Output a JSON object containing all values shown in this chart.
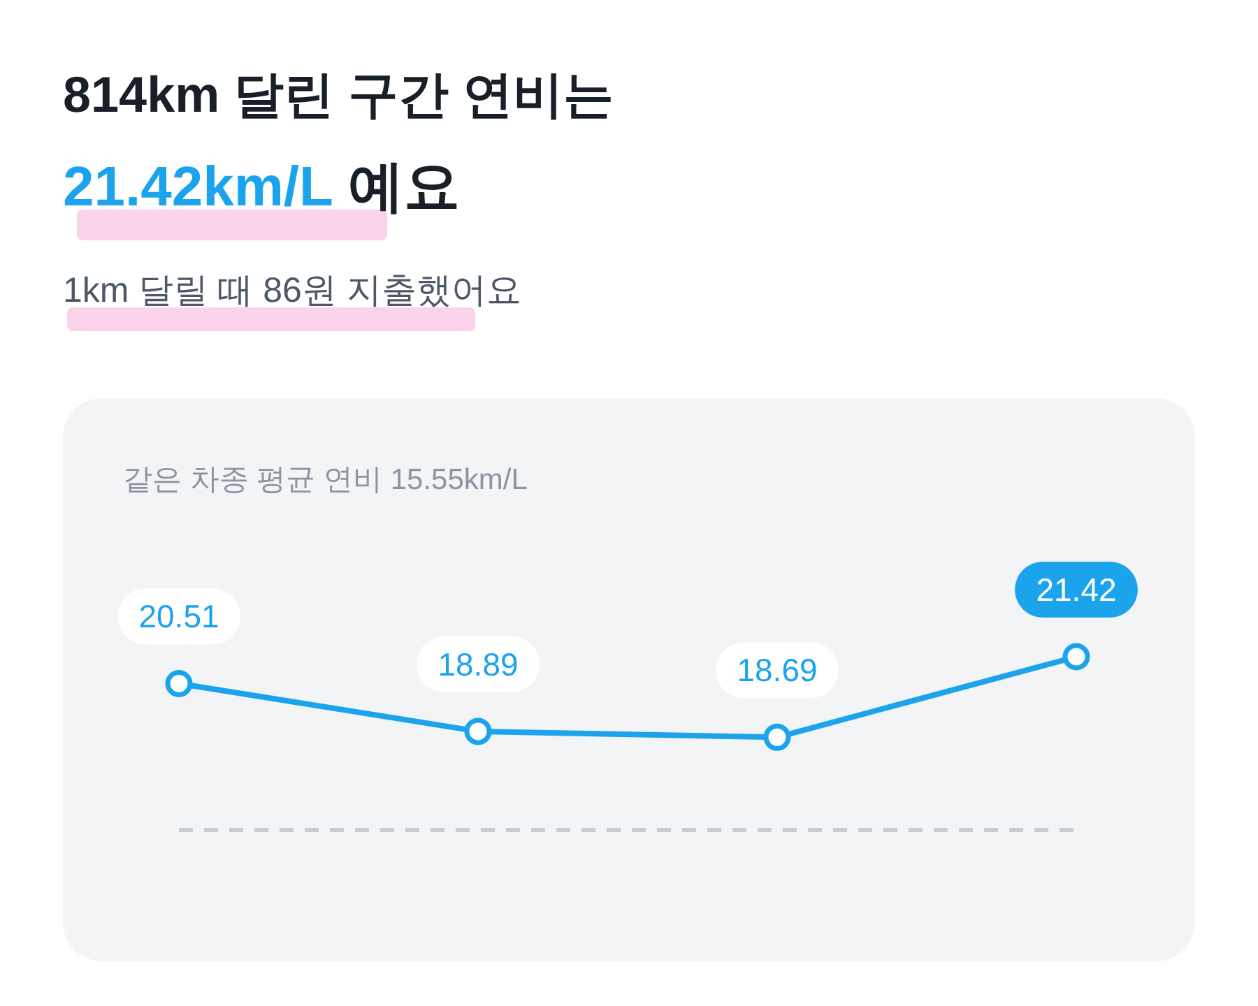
{
  "chart_data": {
    "type": "line",
    "title": "814km 달린 구간 연비는",
    "subtitle": "21.42km/L 예요",
    "annotations": [
      "1km 달릴 때 86원 지출했어요",
      "같은 차종 평균 연비 15.55km/L"
    ],
    "categories": [
      null,
      null,
      null,
      null
    ],
    "series": [
      {
        "color": "#1ba4ec",
        "values": [
          20.51,
          18.89,
          18.69,
          21.42
        ]
      }
    ],
    "data_labels": true,
    "marker": "circle",
    "line_style": "solid",
    "tick_labels": false,
    "ref_lines": [
      {
        "axis": "y",
        "value": 15.55,
        "color": "#c7ccd1",
        "line_style": "dashed"
      }
    ]
  }
}
